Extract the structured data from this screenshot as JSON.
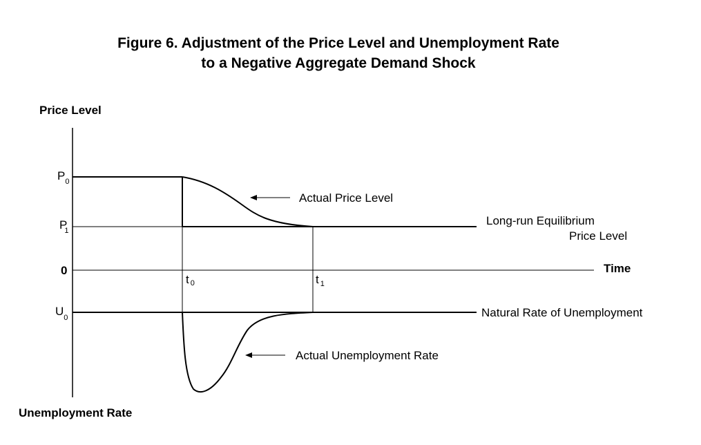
{
  "title": {
    "line1": "Figure 6.  Adjustment of the Price Level and Unemployment Rate",
    "line2": "to a Negative Aggregate Demand Shock"
  },
  "axes": {
    "price_level": "Price Level",
    "unemployment_rate": "Unemployment Rate",
    "time": "Time",
    "zero": "0"
  },
  "ticks": {
    "p0_letter": "P",
    "p0_sub": "0",
    "p1_letter": "P",
    "p1_sub": "1",
    "u0_letter": "U",
    "u0_sub": "0",
    "t0_letter": "t",
    "t0_sub": "0",
    "t1_letter": "t",
    "t1_sub": "1"
  },
  "annotations": {
    "actual_price_level": "Actual Price Level",
    "long_run_line1": "Long-run Equilibrium",
    "long_run_line2": "Price Level",
    "natural_rate": "Natural Rate of Unemployment",
    "actual_unemployment": "Actual Unemployment Rate"
  }
}
